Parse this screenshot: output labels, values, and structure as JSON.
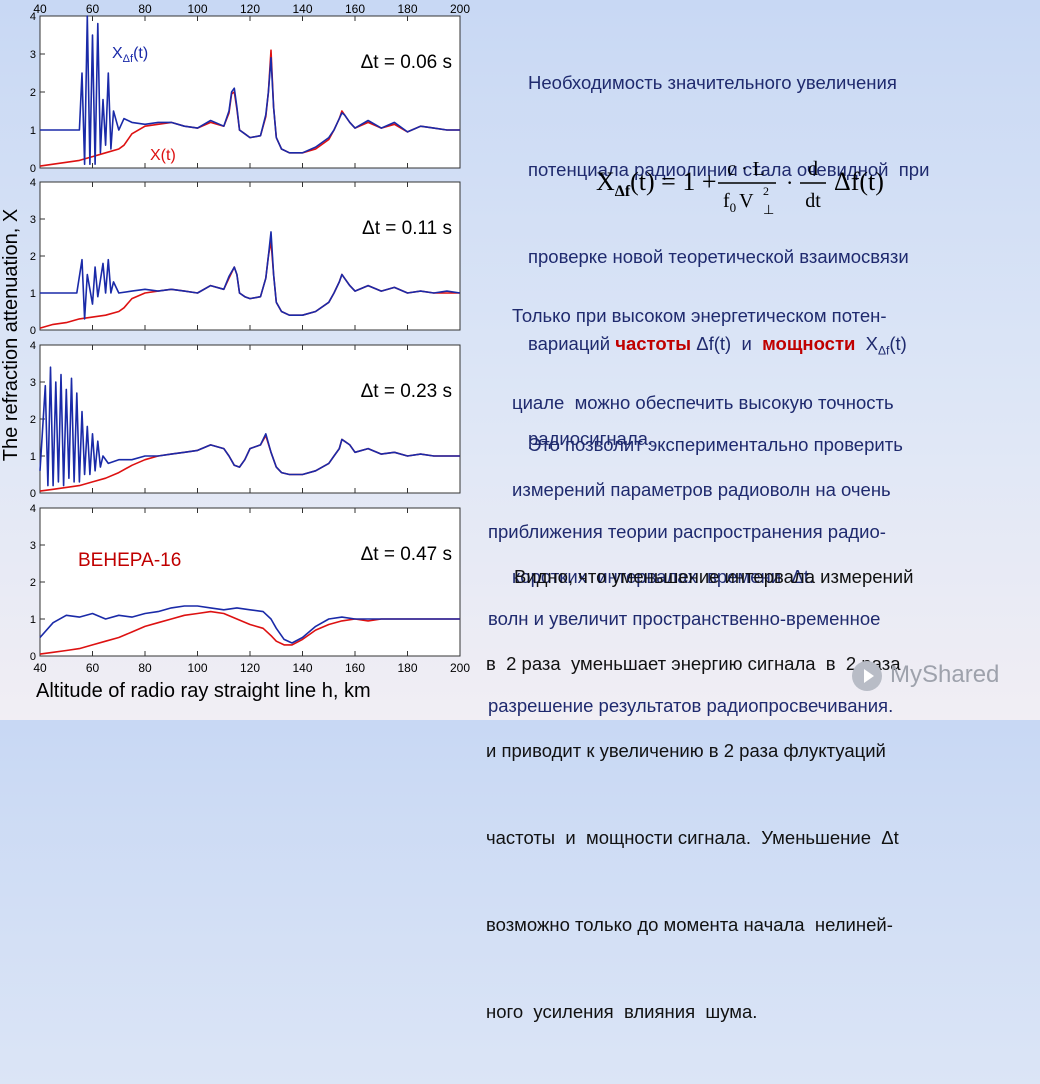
{
  "axis": {
    "ylabel": "The refraction attenuation, X",
    "xlabel": "Altitude of radio ray straight line  h, km",
    "xticks": [
      40,
      60,
      80,
      100,
      120,
      140,
      160,
      180,
      200
    ],
    "yticks": [
      0,
      1,
      2,
      3,
      4
    ]
  },
  "chart_data": [
    {
      "type": "line",
      "xlim": [
        40,
        200
      ],
      "ylim": [
        0,
        4
      ],
      "annotation": "Δt = 0.06 s",
      "series": [
        {
          "name": "X_Δf(t)",
          "color": "#1a2aa8",
          "x": [
            40,
            52,
            55,
            56,
            57,
            58,
            59,
            60,
            61,
            62,
            63,
            64,
            65,
            66,
            67,
            68,
            70,
            72,
            75,
            80,
            85,
            90,
            95,
            100,
            105,
            110,
            112,
            113,
            114,
            115,
            116,
            118,
            120,
            124,
            126,
            127,
            128,
            129,
            130,
            132,
            135,
            140,
            145,
            150,
            152,
            154,
            155,
            156,
            158,
            160,
            165,
            170,
            175,
            180,
            185,
            190,
            195,
            200
          ],
          "y": [
            1.0,
            1.0,
            1.0,
            2.5,
            0.1,
            4.0,
            0.1,
            3.5,
            0.1,
            3.8,
            0.4,
            1.8,
            0.6,
            2.5,
            0.5,
            1.5,
            1.0,
            1.3,
            1.2,
            1.15,
            1.2,
            1.2,
            1.1,
            1.05,
            1.25,
            1.1,
            1.5,
            2.0,
            2.1,
            1.6,
            1.0,
            0.9,
            0.8,
            0.85,
            1.4,
            2.0,
            2.9,
            1.6,
            0.8,
            0.5,
            0.4,
            0.4,
            0.55,
            0.8,
            1.0,
            1.3,
            1.45,
            1.4,
            1.2,
            1.05,
            1.25,
            1.05,
            1.2,
            0.95,
            1.1,
            1.05,
            1.0,
            1.0
          ]
        },
        {
          "name": "X(t)",
          "color": "#dd1111",
          "x": [
            40,
            45,
            50,
            55,
            60,
            65,
            70,
            72,
            75,
            80,
            85,
            90,
            95,
            100,
            105,
            110,
            112,
            113,
            114,
            115,
            116,
            118,
            120,
            124,
            126,
            127,
            128,
            129,
            130,
            132,
            135,
            140,
            145,
            150,
            152,
            154,
            155,
            156,
            158,
            160,
            165,
            170,
            175,
            180,
            185,
            190,
            195,
            200
          ],
          "y": [
            0.05,
            0.1,
            0.15,
            0.2,
            0.3,
            0.4,
            0.5,
            0.6,
            0.9,
            1.1,
            1.15,
            1.2,
            1.1,
            1.05,
            1.2,
            1.1,
            1.45,
            1.95,
            2.0,
            1.55,
            1.0,
            0.9,
            0.8,
            0.85,
            1.35,
            2.0,
            3.1,
            1.6,
            0.8,
            0.5,
            0.4,
            0.4,
            0.5,
            0.75,
            1.0,
            1.3,
            1.5,
            1.4,
            1.2,
            1.05,
            1.2,
            1.05,
            1.15,
            0.95,
            1.1,
            1.05,
            1.0,
            1.0
          ]
        }
      ]
    },
    {
      "type": "line",
      "xlim": [
        40,
        200
      ],
      "ylim": [
        0,
        4
      ],
      "annotation": "Δt = 0.11 s",
      "series": [
        {
          "name": "X_Δf(t)",
          "color": "#1a2aa8",
          "x": [
            40,
            52,
            54,
            56,
            57,
            58,
            60,
            61,
            62,
            64,
            65,
            66,
            67,
            68,
            70,
            75,
            80,
            85,
            90,
            95,
            100,
            105,
            110,
            112,
            114,
            115,
            116,
            118,
            120,
            124,
            126,
            127,
            128,
            129,
            130,
            132,
            135,
            140,
            145,
            150,
            152,
            154,
            155,
            156,
            158,
            160,
            165,
            170,
            175,
            180,
            185,
            190,
            195,
            200
          ],
          "y": [
            1.0,
            1.0,
            1.0,
            1.9,
            0.3,
            1.5,
            0.7,
            1.7,
            0.9,
            1.8,
            1.0,
            1.9,
            1.0,
            1.3,
            1.0,
            1.05,
            1.1,
            1.05,
            1.1,
            1.05,
            1.0,
            1.2,
            1.1,
            1.45,
            1.7,
            1.5,
            1.0,
            0.9,
            0.85,
            0.9,
            1.4,
            2.0,
            2.65,
            1.5,
            0.75,
            0.5,
            0.4,
            0.4,
            0.5,
            0.75,
            1.0,
            1.3,
            1.5,
            1.4,
            1.2,
            1.05,
            1.2,
            1.05,
            1.15,
            1.0,
            1.05,
            1.0,
            1.05,
            1.0
          ]
        },
        {
          "name": "X(t)",
          "color": "#dd1111",
          "x": [
            40,
            45,
            50,
            55,
            60,
            65,
            70,
            72,
            75,
            80,
            85,
            90,
            95,
            100,
            105,
            110,
            112,
            114,
            115,
            116,
            118,
            120,
            124,
            126,
            127,
            128,
            129,
            130,
            132,
            135,
            140,
            145,
            150,
            152,
            154,
            155,
            156,
            158,
            160,
            165,
            170,
            175,
            180,
            185,
            190,
            195,
            200
          ],
          "y": [
            0.05,
            0.15,
            0.2,
            0.3,
            0.35,
            0.4,
            0.5,
            0.6,
            0.85,
            1.0,
            1.05,
            1.1,
            1.05,
            1.0,
            1.2,
            1.1,
            1.4,
            1.7,
            1.5,
            1.0,
            0.9,
            0.85,
            0.9,
            1.4,
            2.0,
            2.4,
            1.5,
            0.75,
            0.5,
            0.4,
            0.4,
            0.5,
            0.75,
            1.0,
            1.3,
            1.5,
            1.4,
            1.2,
            1.05,
            1.2,
            1.05,
            1.15,
            1.0,
            1.05,
            1.0,
            1.0,
            1.0
          ]
        }
      ]
    },
    {
      "type": "line",
      "xlim": [
        40,
        200
      ],
      "ylim": [
        0,
        4
      ],
      "annotation": "Δt = 0.23 s",
      "series": [
        {
          "name": "X_Δf(t)",
          "color": "#1a2aa8",
          "x": [
            40,
            42,
            43,
            44,
            45,
            46,
            47,
            48,
            49,
            50,
            51,
            52,
            53,
            54,
            55,
            56,
            57,
            58,
            59,
            60,
            61,
            62,
            63,
            64,
            66,
            70,
            75,
            80,
            85,
            90,
            95,
            100,
            105,
            110,
            112,
            114,
            116,
            118,
            120,
            124,
            126,
            128,
            130,
            132,
            135,
            140,
            145,
            150,
            152,
            154,
            155,
            156,
            158,
            160,
            165,
            170,
            175,
            180,
            185,
            190,
            195,
            200
          ],
          "y": [
            0.6,
            2.9,
            0.2,
            3.4,
            0.2,
            3.0,
            0.3,
            3.2,
            0.2,
            2.8,
            0.4,
            3.1,
            0.3,
            2.7,
            0.3,
            2.2,
            0.5,
            1.8,
            0.5,
            1.6,
            0.6,
            1.4,
            0.7,
            1.0,
            0.8,
            0.9,
            0.9,
            1.0,
            1.0,
            1.05,
            1.1,
            1.15,
            1.3,
            1.2,
            1.0,
            0.75,
            0.7,
            0.9,
            1.2,
            1.3,
            1.6,
            1.1,
            0.7,
            0.55,
            0.5,
            0.5,
            0.6,
            0.8,
            1.0,
            1.2,
            1.45,
            1.4,
            1.3,
            1.1,
            1.2,
            1.05,
            1.1,
            1.0,
            1.05,
            1.0,
            1.0,
            1.0
          ]
        },
        {
          "name": "X(t)",
          "color": "#dd1111",
          "x": [
            40,
            45,
            50,
            55,
            60,
            65,
            70,
            75,
            80,
            85,
            90,
            95,
            100,
            105,
            110,
            112,
            114,
            116,
            118,
            120,
            124,
            126,
            128,
            130,
            132,
            135,
            140,
            145,
            150,
            152,
            154,
            155,
            156,
            158,
            160,
            165,
            170,
            175,
            180,
            185,
            190,
            195,
            200
          ],
          "y": [
            0.05,
            0.1,
            0.15,
            0.2,
            0.3,
            0.4,
            0.55,
            0.75,
            0.9,
            1.0,
            1.05,
            1.1,
            1.15,
            1.3,
            1.2,
            1.0,
            0.75,
            0.7,
            0.9,
            1.2,
            1.3,
            1.55,
            1.1,
            0.7,
            0.55,
            0.5,
            0.5,
            0.6,
            0.8,
            1.0,
            1.2,
            1.45,
            1.4,
            1.3,
            1.1,
            1.2,
            1.05,
            1.1,
            1.0,
            1.05,
            1.0,
            1.0,
            1.0
          ]
        }
      ]
    },
    {
      "type": "line",
      "xlim": [
        40,
        200
      ],
      "ylim": [
        0,
        4
      ],
      "annotation": "Δt = 0.47 s",
      "label": "ВЕНЕРА-16",
      "series": [
        {
          "name": "X_Δf(t)",
          "color": "#1a2aa8",
          "x": [
            40,
            45,
            50,
            55,
            60,
            65,
            70,
            75,
            80,
            85,
            90,
            95,
            100,
            105,
            110,
            115,
            120,
            125,
            128,
            130,
            133,
            136,
            140,
            145,
            150,
            155,
            160,
            165,
            170,
            175,
            180,
            185,
            190,
            195,
            200
          ],
          "y": [
            0.5,
            0.9,
            1.1,
            1.05,
            1.15,
            1.0,
            1.1,
            1.05,
            1.15,
            1.2,
            1.3,
            1.35,
            1.35,
            1.3,
            1.25,
            1.3,
            1.25,
            1.2,
            1.0,
            0.75,
            0.45,
            0.35,
            0.5,
            0.8,
            1.0,
            1.05,
            1.0,
            1.0,
            1.0,
            1.0,
            1.0,
            1.0,
            1.0,
            1.0,
            1.0
          ]
        },
        {
          "name": "X(t)",
          "color": "#dd1111",
          "x": [
            40,
            45,
            50,
            55,
            60,
            65,
            70,
            75,
            80,
            85,
            90,
            95,
            100,
            105,
            110,
            115,
            120,
            125,
            128,
            130,
            133,
            136,
            140,
            145,
            150,
            155,
            160,
            165,
            170,
            175,
            180,
            185,
            190,
            195,
            200
          ],
          "y": [
            0.05,
            0.1,
            0.15,
            0.2,
            0.3,
            0.4,
            0.5,
            0.65,
            0.8,
            0.9,
            1.0,
            1.1,
            1.15,
            1.2,
            1.15,
            1.0,
            0.85,
            0.75,
            0.55,
            0.4,
            0.3,
            0.3,
            0.45,
            0.7,
            0.85,
            0.95,
            1.0,
            0.95,
            1.0,
            1.0,
            1.0,
            1.0,
            1.0,
            1.0,
            1.0
          ]
        }
      ]
    }
  ],
  "legend": {
    "blue_label_main": "X",
    "blue_label_sub": "Δf",
    "blue_label_end": "(t)",
    "red_label": "X(t)"
  },
  "text": {
    "p1_lines": [
      "Необходимость значительного увеличения",
      "потенциала радиолинии стала очевидной  при",
      "проверке новой теоретической взаимосвязи"
    ],
    "p1_l4_a": "вариаций ",
    "p1_l4_b": "частоты",
    "p1_l4_c": " Δf(t)  и  ",
    "p1_l4_d": "мощности",
    "p1_l4_e": "  X",
    "p1_l4_sub": "Δf",
    "p1_l4_f": "(t)",
    "p1_l5": "радиосигнала.",
    "p2_lines": [
      "Только при высоком энергетическом потен-",
      "циале  можно обеспечить высокую точность",
      "измерений параметров радиоволн на очень"
    ],
    "p2_l4": "коротких  интервалах  времени  Δt.",
    "p3_lines": [
      "Это позволит экспериментально проверить",
      "приближения теории распространения радио-",
      "волн и увеличит пространственно-временное",
      "разрешение результатов радиопросвечивания."
    ],
    "p4_lines": [
      "Видно, что уменьшение интервала измерений",
      "в  2 раза  уменьшает энергию сигнала  в  2 раза",
      "и приводит к увеличению в 2 раза флуктуаций",
      "частоты  и  мощности сигнала.  Уменьшение  Δt",
      "возможно только до момента начала  нелиней-",
      "ного  усиления  влияния  шума."
    ]
  },
  "formula": {
    "lhs": "X",
    "lhs_sub": "Δf",
    "lhs_end": "(t) = 1 +",
    "num": "c · L",
    "den_a": "f",
    "den_a_sub": "0",
    "den_b": "V",
    "den_b_sup": "2",
    "den_b_sub": "⊥",
    "dot": "·",
    "d_num": "d",
    "d_den": "dt",
    "tail": "Δf(t)"
  },
  "logo": {
    "text": "MyShared"
  },
  "colors": {
    "blue": "#1a2aa8",
    "red": "#dd1111",
    "text_blue": "#1f2a6e",
    "text_red": "#c00000"
  }
}
